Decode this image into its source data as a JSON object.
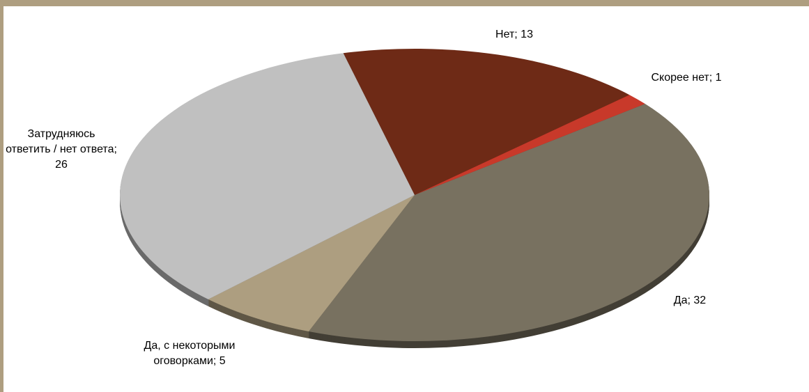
{
  "chart_data": {
    "type": "pie",
    "values": [
      13,
      1,
      32,
      5,
      26
    ],
    "value_labels": [
      "Нет; 13",
      "Скорее нет; 1",
      "Да; 32",
      "Да, с некоторыми оговорками; 5",
      "Затрудняюсь ответить / нет ответа; 26"
    ],
    "colors": [
      "#6e2a16",
      "#c8392a",
      "#787160",
      "#ad9e80",
      "#c0c0c0"
    ]
  }
}
